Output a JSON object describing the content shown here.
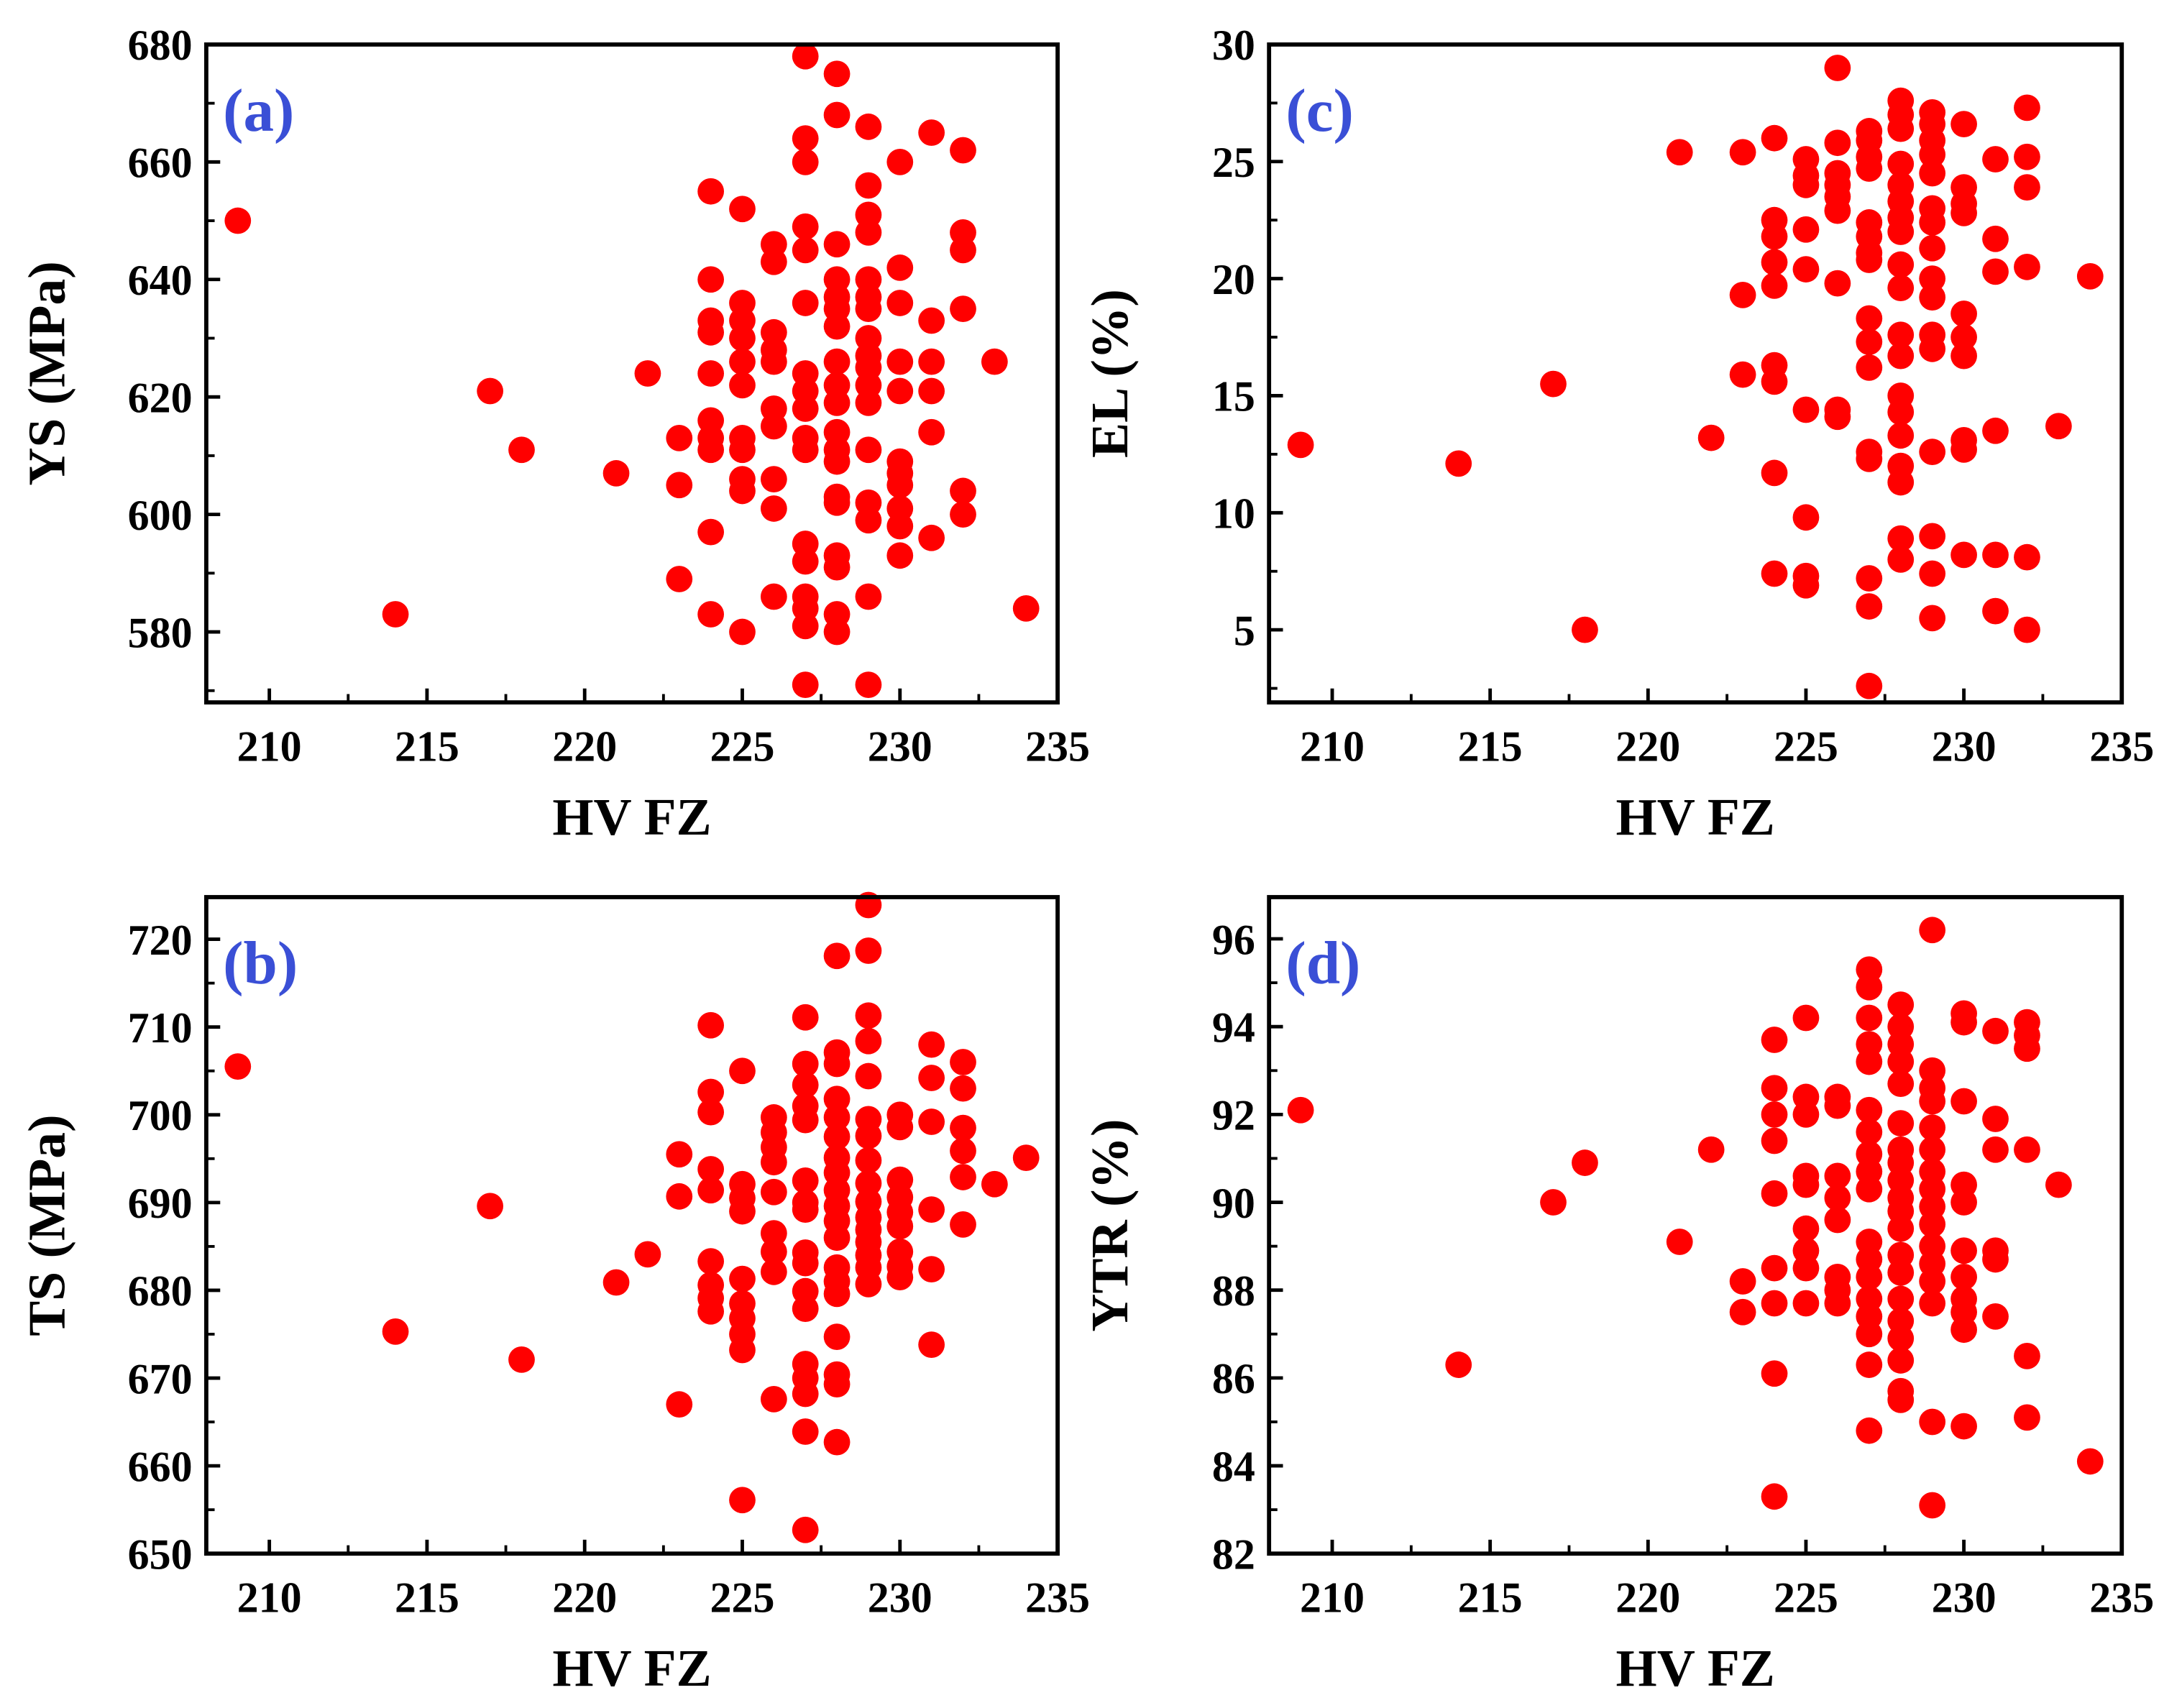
{
  "chart_data": [
    {
      "type": "scatter",
      "panel_label": "(a)",
      "xlabel": "HV FZ",
      "ylabel": "YS (MPa)",
      "xlim": [
        208,
        235
      ],
      "ylim": [
        568,
        680
      ],
      "xticks": [
        210,
        215,
        220,
        225,
        230,
        235
      ],
      "yticks": [
        580,
        600,
        620,
        640,
        660,
        680
      ],
      "marker_color": "#ff0000",
      "label_color": "#3a4fd6",
      "columns": [
        {
          "x": 209,
          "y": [
            650
          ]
        },
        {
          "x": 214,
          "y": [
            583
          ]
        },
        {
          "x": 217,
          "y": [
            621
          ]
        },
        {
          "x": 218,
          "y": [
            611
          ]
        },
        {
          "x": 221,
          "y": [
            607
          ]
        },
        {
          "x": 222,
          "y": [
            624
          ]
        },
        {
          "x": 223,
          "y": [
            613,
            605,
            589
          ]
        },
        {
          "x": 224,
          "y": [
            655,
            640,
            633,
            631,
            624,
            616,
            613,
            611,
            597,
            583
          ]
        },
        {
          "x": 225,
          "y": [
            652,
            636,
            633,
            630,
            626,
            622,
            613,
            611,
            606,
            604,
            580
          ]
        },
        {
          "x": 226,
          "y": [
            646,
            643,
            631,
            628,
            626,
            618,
            615,
            606,
            601,
            586
          ]
        },
        {
          "x": 227,
          "y": [
            678,
            664,
            660,
            649,
            645,
            636,
            624,
            621,
            618,
            613,
            611,
            595,
            592,
            586,
            584,
            581,
            571
          ]
        },
        {
          "x": 228,
          "y": [
            675,
            668,
            646,
            640,
            637,
            635,
            632,
            626,
            622,
            619,
            614,
            611,
            609,
            603,
            602,
            593,
            591,
            583,
            580
          ]
        },
        {
          "x": 229,
          "y": [
            666,
            656,
            651,
            648,
            640,
            637,
            635,
            630,
            627,
            625,
            622,
            619,
            611,
            602,
            599,
            586,
            571
          ]
        },
        {
          "x": 230,
          "y": [
            660,
            642,
            636,
            626,
            621,
            609,
            607,
            605,
            601,
            598,
            593
          ]
        },
        {
          "x": 231,
          "y": [
            665,
            633,
            626,
            621,
            614,
            596
          ]
        },
        {
          "x": 232,
          "y": [
            662,
            648,
            645,
            635,
            604,
            600
          ]
        },
        {
          "x": 233,
          "y": [
            626
          ]
        },
        {
          "x": 234,
          "y": [
            584
          ]
        }
      ]
    },
    {
      "type": "scatter",
      "panel_label": "(c)",
      "xlabel": "HV FZ",
      "ylabel": "EL (%)",
      "xlim": [
        208,
        235
      ],
      "ylim": [
        1.9,
        30
      ],
      "xticks": [
        210,
        215,
        220,
        225,
        230,
        235
      ],
      "yticks": [
        5,
        10,
        15,
        20,
        25,
        30
      ],
      "marker_color": "#ff0000",
      "label_color": "#3a4fd6",
      "columns": [
        {
          "x": 209,
          "y": [
            12.9
          ]
        },
        {
          "x": 214,
          "y": [
            12.1
          ]
        },
        {
          "x": 217,
          "y": [
            15.5
          ]
        },
        {
          "x": 218,
          "y": [
            5.0
          ]
        },
        {
          "x": 221,
          "y": [
            25.4
          ]
        },
        {
          "x": 222,
          "y": [
            13.2
          ]
        },
        {
          "x": 223,
          "y": [
            25.4,
            19.3,
            15.9
          ]
        },
        {
          "x": 224,
          "y": [
            26.0,
            22.5,
            21.8,
            20.7,
            19.7,
            16.3,
            15.6,
            11.7,
            7.4
          ]
        },
        {
          "x": 225,
          "y": [
            25.1,
            24.4,
            24.0,
            22.1,
            20.4,
            14.4,
            9.8,
            7.3,
            6.9
          ]
        },
        {
          "x": 226,
          "y": [
            29.0,
            25.8,
            24.5,
            24.0,
            23.5,
            22.9,
            19.8,
            14.4,
            14.1
          ]
        },
        {
          "x": 227,
          "y": [
            26.3,
            25.9,
            25.2,
            24.7,
            22.4,
            21.8,
            21.1,
            20.8,
            18.3,
            17.3,
            16.2,
            12.6,
            12.3,
            7.2,
            6.0,
            2.6
          ]
        },
        {
          "x": 228,
          "y": [
            27.6,
            27.0,
            26.4,
            24.9,
            24.0,
            23.3,
            22.6,
            22.0,
            20.6,
            19.6,
            17.6,
            16.7,
            15.0,
            14.3,
            13.3,
            12.0,
            11.3,
            8.9,
            8.0
          ]
        },
        {
          "x": 229,
          "y": [
            27.1,
            26.6,
            25.9,
            25.3,
            24.5,
            23.0,
            22.4,
            21.3,
            20.0,
            19.2,
            17.6,
            17.0,
            12.6,
            9.0,
            7.4,
            5.5
          ]
        },
        {
          "x": 230,
          "y": [
            26.6,
            23.9,
            23.2,
            22.8,
            18.5,
            17.5,
            16.7,
            13.1,
            12.7,
            8.2
          ]
        },
        {
          "x": 231,
          "y": [
            25.1,
            21.7,
            20.3,
            13.5,
            8.2,
            5.8
          ]
        },
        {
          "x": 232,
          "y": [
            27.3,
            25.2,
            23.9,
            20.5,
            8.1,
            5.0
          ]
        },
        {
          "x": 233,
          "y": [
            13.7
          ]
        },
        {
          "x": 234,
          "y": [
            20.1
          ]
        }
      ]
    },
    {
      "type": "scatter",
      "panel_label": "(b)",
      "xlabel": "HV FZ",
      "ylabel": "TS (MPa)",
      "xlim": [
        208,
        235
      ],
      "ylim": [
        650,
        724.8
      ],
      "xticks": [
        210,
        215,
        220,
        225,
        230,
        235
      ],
      "yticks": [
        650,
        660,
        670,
        680,
        690,
        700,
        710,
        720
      ],
      "marker_color": "#ff0000",
      "label_color": "#3a4fd6",
      "columns": [
        {
          "x": 209,
          "y": [
            705.5
          ]
        },
        {
          "x": 214,
          "y": [
            675.3
          ]
        },
        {
          "x": 217,
          "y": [
            689.6
          ]
        },
        {
          "x": 218,
          "y": [
            672.1
          ]
        },
        {
          "x": 221,
          "y": [
            680.9
          ]
        },
        {
          "x": 222,
          "y": [
            684.1
          ]
        },
        {
          "x": 223,
          "y": [
            695.5,
            690.7,
            667.0
          ]
        },
        {
          "x": 224,
          "y": [
            710.2,
            702.6,
            700.3,
            693.8,
            691.4,
            683.3,
            680.6,
            679.1,
            677.6
          ]
        },
        {
          "x": 225,
          "y": [
            705.0,
            692.1,
            690.5,
            689.0,
            681.3,
            678.5,
            676.8,
            675.0,
            673.2,
            656.1
          ]
        },
        {
          "x": 226,
          "y": [
            699.7,
            698.0,
            696.3,
            694.6,
            691.2,
            686.5,
            684.4,
            682.1,
            667.6
          ]
        },
        {
          "x": 227,
          "y": [
            711.1,
            705.8,
            703.4,
            701.0,
            699.4,
            692.5,
            690.0,
            689.2,
            684.3,
            683.1,
            679.9,
            677.9,
            671.6,
            670.0,
            668.2,
            663.9,
            652.7
          ]
        },
        {
          "x": 228,
          "y": [
            718.1,
            707.1,
            705.8,
            701.8,
            699.7,
            697.5,
            695.1,
            693.4,
            691.4,
            689.6,
            687.9,
            686.0,
            682.6,
            681.0,
            679.6,
            674.7,
            670.4,
            669.3,
            662.7
          ]
        },
        {
          "x": 229,
          "y": [
            723.9,
            718.7,
            711.3,
            708.4,
            704.4,
            699.5,
            697.6,
            694.8,
            692.2,
            690.1,
            688.3,
            686.9,
            685.5,
            684.0,
            682.6,
            680.7
          ]
        },
        {
          "x": 230,
          "y": [
            700.0,
            698.6,
            692.6,
            690.6,
            688.9,
            687.3,
            684.4,
            682.7,
            681.5
          ]
        },
        {
          "x": 231,
          "y": [
            708.0,
            704.2,
            699.2,
            689.2,
            682.4,
            673.8
          ]
        },
        {
          "x": 232,
          "y": [
            706.0,
            703.0,
            698.5,
            695.9,
            692.9,
            687.5
          ]
        },
        {
          "x": 233,
          "y": [
            692.1
          ]
        },
        {
          "x": 234,
          "y": [
            695.1
          ]
        }
      ]
    },
    {
      "type": "scatter",
      "panel_label": "(d)",
      "xlabel": "HV FZ",
      "ylabel": "YTR (%)",
      "xlim": [
        208,
        235
      ],
      "ylim": [
        82,
        96.95
      ],
      "xticks": [
        210,
        215,
        220,
        225,
        230,
        235
      ],
      "yticks": [
        82,
        84,
        86,
        88,
        90,
        92,
        94,
        96
      ],
      "marker_color": "#ff0000",
      "label_color": "#3a4fd6",
      "columns": [
        {
          "x": 209,
          "y": [
            92.1
          ]
        },
        {
          "x": 214,
          "y": [
            86.3
          ]
        },
        {
          "x": 217,
          "y": [
            90.0
          ]
        },
        {
          "x": 218,
          "y": [
            90.9
          ]
        },
        {
          "x": 221,
          "y": [
            89.1
          ]
        },
        {
          "x": 222,
          "y": [
            91.2
          ]
        },
        {
          "x": 223,
          "y": [
            88.2,
            87.5
          ]
        },
        {
          "x": 224,
          "y": [
            93.7,
            92.6,
            92.0,
            91.4,
            90.2,
            88.5,
            87.7,
            86.1,
            83.3
          ]
        },
        {
          "x": 225,
          "y": [
            94.2,
            92.4,
            92.0,
            90.6,
            90.4,
            89.4,
            88.9,
            88.5,
            87.7
          ]
        },
        {
          "x": 226,
          "y": [
            92.4,
            92.2,
            90.6,
            90.1,
            89.6,
            88.3,
            88.0,
            87.7
          ]
        },
        {
          "x": 227,
          "y": [
            95.3,
            94.9,
            94.2,
            93.6,
            93.2,
            92.1,
            91.6,
            91.1,
            90.7,
            90.3,
            89.1,
            88.7,
            88.3,
            87.8,
            87.4,
            87.0,
            86.3,
            84.8
          ]
        },
        {
          "x": 228,
          "y": [
            94.5,
            94.0,
            93.6,
            93.2,
            92.7,
            91.8,
            91.2,
            90.9,
            90.5,
            90.1,
            89.8,
            89.4,
            88.8,
            88.4,
            87.8,
            87.3,
            86.9,
            86.4,
            85.7,
            85.5
          ]
        },
        {
          "x": 229,
          "y": [
            96.2,
            93.0,
            92.6,
            92.3,
            91.7,
            91.2,
            90.7,
            90.3,
            89.9,
            89.5,
            89.0,
            88.6,
            88.2,
            87.7,
            85.0,
            83.1
          ]
        },
        {
          "x": 230,
          "y": [
            94.3,
            94.1,
            92.3,
            90.4,
            90.0,
            88.9,
            88.3,
            87.8,
            87.5,
            87.1,
            84.9
          ]
        },
        {
          "x": 231,
          "y": [
            93.9,
            91.9,
            91.2,
            88.9,
            88.7,
            87.4
          ]
        },
        {
          "x": 232,
          "y": [
            94.1,
            93.8,
            93.5,
            91.2,
            86.5,
            85.1
          ]
        },
        {
          "x": 233,
          "y": [
            90.4
          ]
        },
        {
          "x": 234,
          "y": [
            84.1
          ]
        }
      ]
    }
  ]
}
